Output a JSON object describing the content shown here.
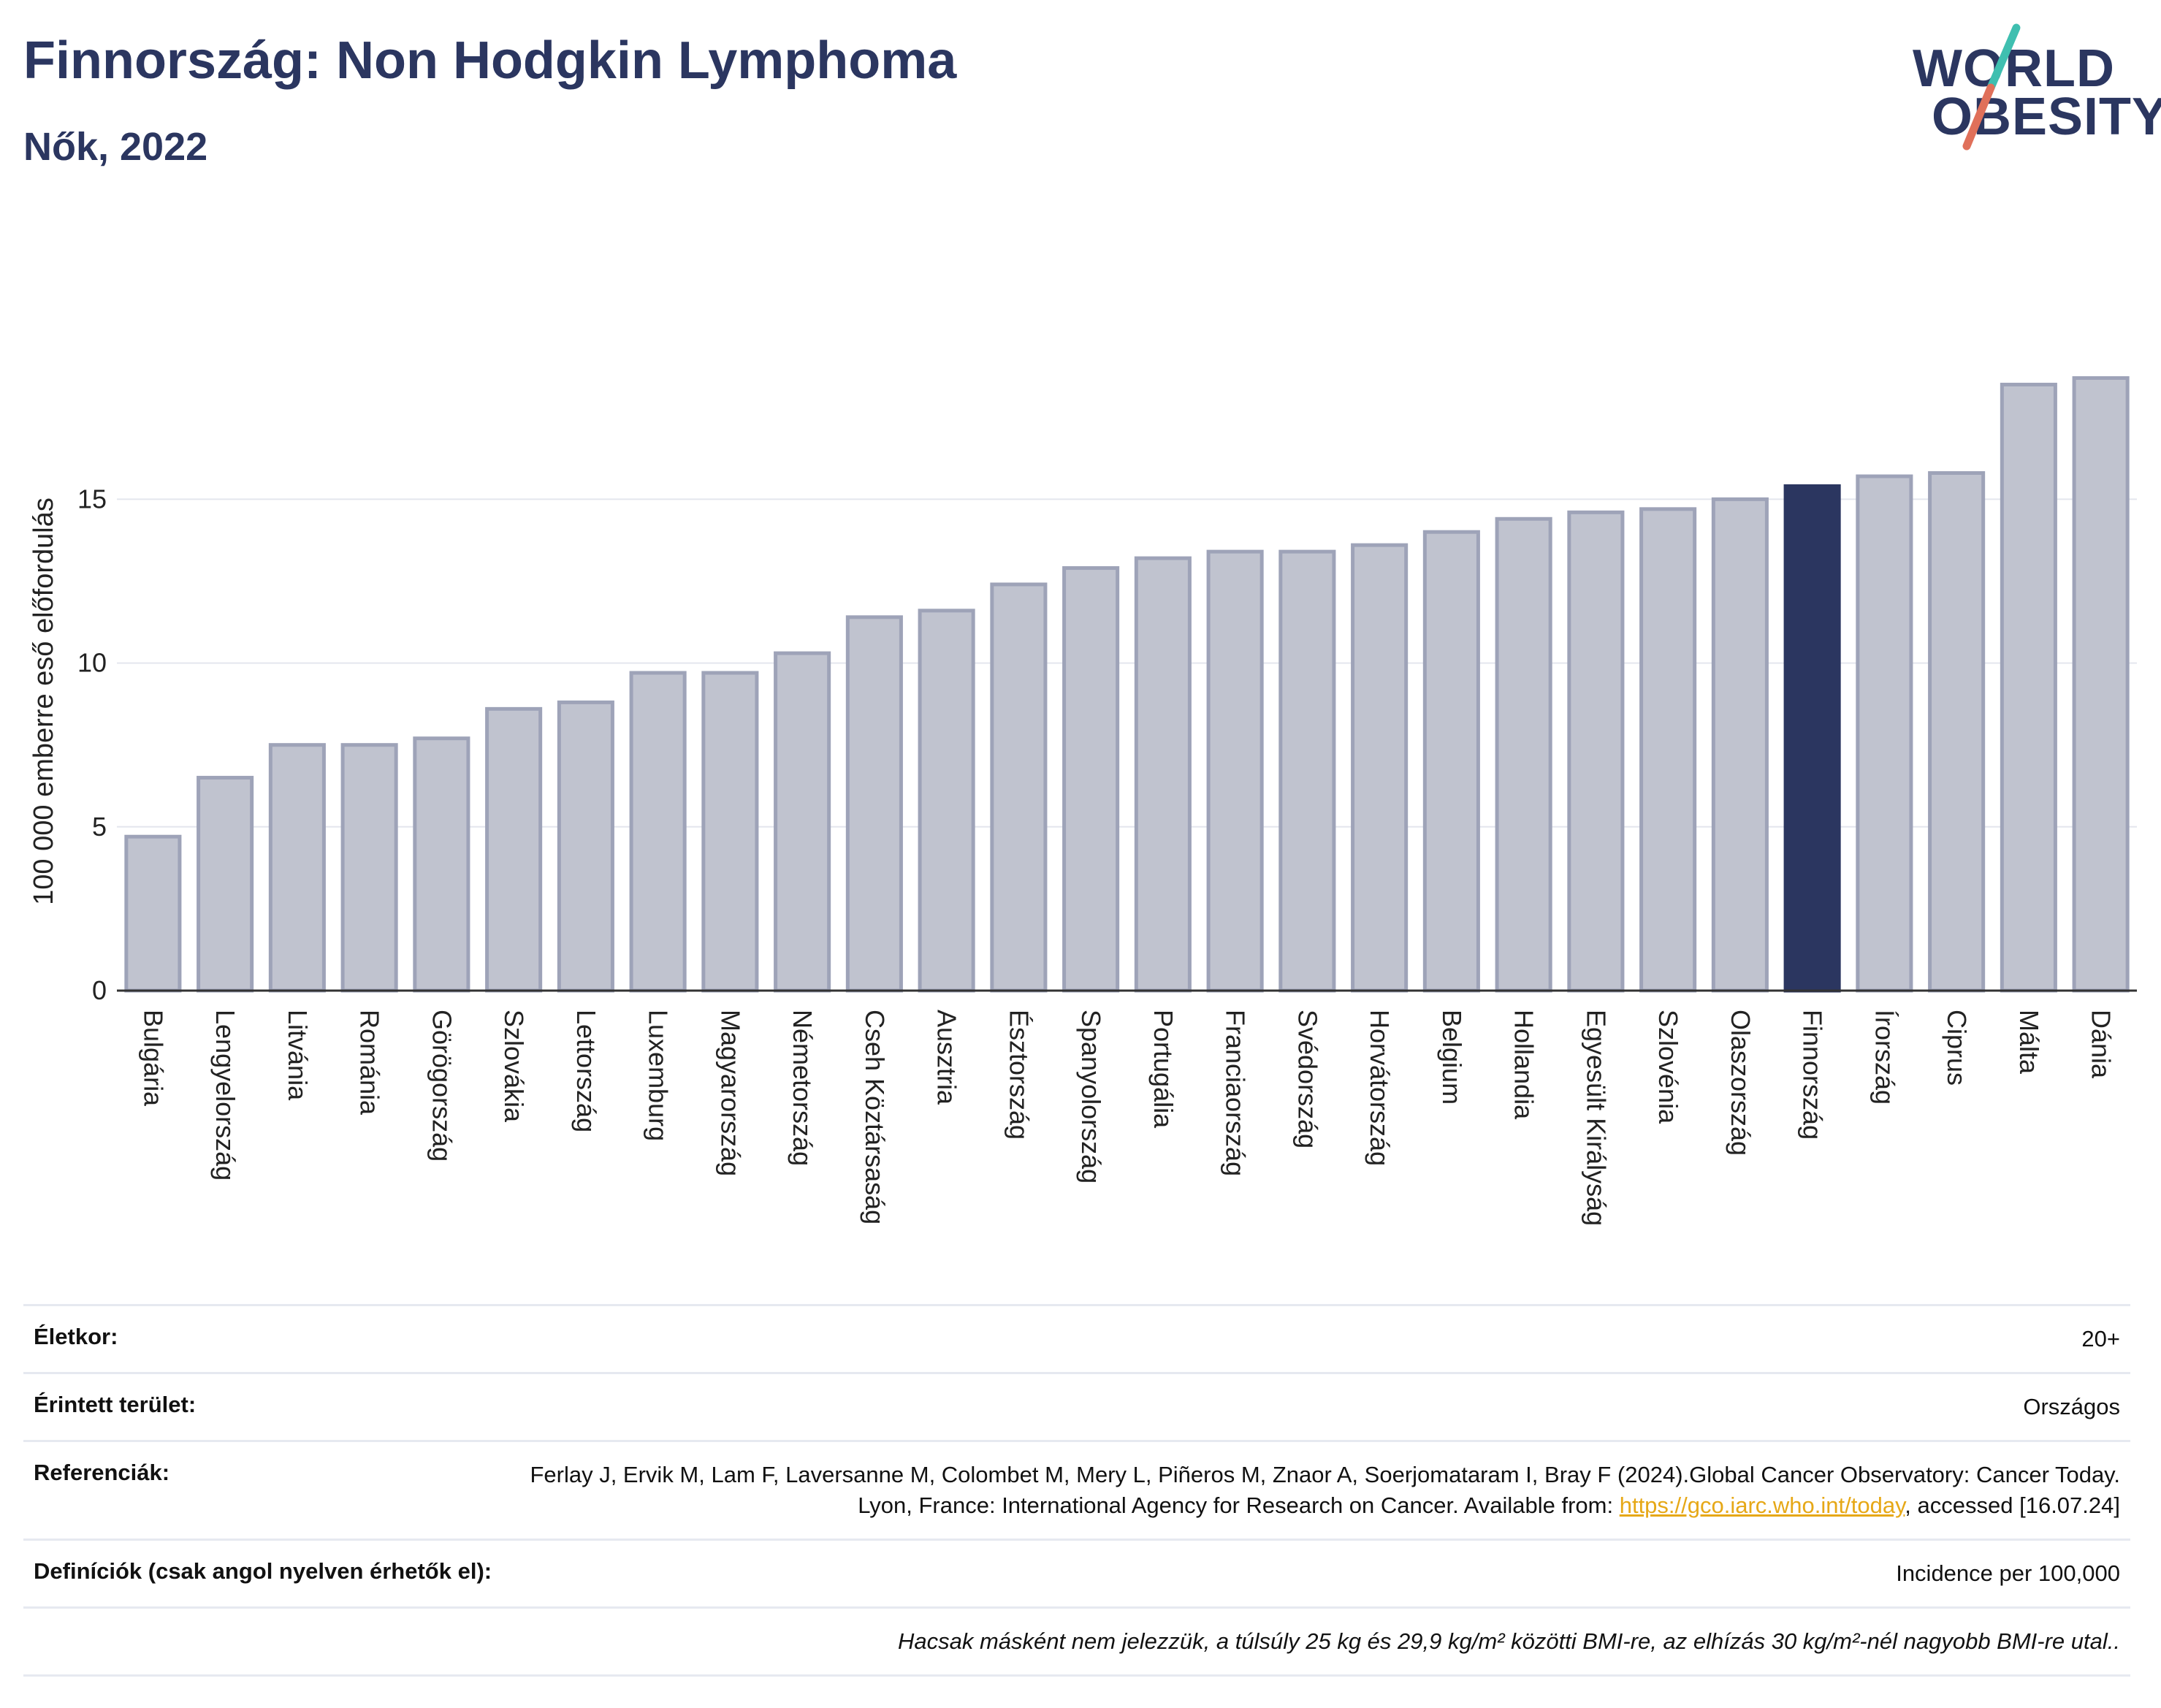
{
  "header": {
    "title": "Finnország: Non Hodgkin Lymphoma",
    "subtitle": "Nők, 2022"
  },
  "logo": {
    "line1": "WORLD",
    "line2": "OBESITY",
    "colors": [
      "#2b3660",
      "#3fbfb0",
      "#e0705a"
    ]
  },
  "chart_data": {
    "type": "bar",
    "ylabel": "100 000 emberre eső előfordulás",
    "xlabel": "",
    "ylim": [
      0,
      19
    ],
    "yticks": [
      0,
      5,
      10,
      15
    ],
    "grid": true,
    "highlight": "Finnország",
    "colors": {
      "bar": "#c0c3cf",
      "bar_border": "#9ea3b8",
      "highlight": "#2b3660"
    },
    "categories": [
      "Bulgária",
      "Lengyelország",
      "Litvánia",
      "Románia",
      "Görögország",
      "Szlovákia",
      "Lettország",
      "Luxemburg",
      "Magyarország",
      "Németország",
      "Cseh Köztársaság",
      "Ausztria",
      "Észtország",
      "Spanyolország",
      "Portugália",
      "Franciaország",
      "Svédország",
      "Horvátország",
      "Belgium",
      "Hollandia",
      "Egyesült Királyság",
      "Szlovénia",
      "Olaszország",
      "Finnország",
      "Írország",
      "Ciprus",
      "Málta",
      "Dánia"
    ],
    "values": [
      4.7,
      6.5,
      7.5,
      7.5,
      7.7,
      8.6,
      8.8,
      9.7,
      9.7,
      10.3,
      11.4,
      11.6,
      12.4,
      12.9,
      13.2,
      13.4,
      13.4,
      13.6,
      14.0,
      14.4,
      14.6,
      14.7,
      15.0,
      15.4,
      15.7,
      15.8,
      18.5,
      18.7
    ]
  },
  "footer": {
    "age_label": "Életkor:",
    "age_value": "20+",
    "area_label": "Érintett terület:",
    "area_value": "Országos",
    "ref_label": "Referenciák:",
    "ref_text": "Ferlay J, Ervik M, Lam F, Laversanne M, Colombet M, Mery L, Piñeros M, Znaor A, Soerjomataram I, Bray F (2024).Global Cancer Observatory: Cancer Today. Lyon, France: International Agency for Research on Cancer. Available from: ",
    "ref_link": "https://gco.iarc.who.int/today",
    "ref_suffix": ", accessed [16.07.24]",
    "def_label": "Definíciók (csak angol nyelven érhetők el):",
    "def_value": "Incidence per 100,000",
    "note": "Hacsak másként nem jelezzük, a túlsúly 25 kg és 29,9 kg/m² közötti BMI-re, az elhízás 30 kg/m²-nél nagyobb BMI-re utal.."
  }
}
